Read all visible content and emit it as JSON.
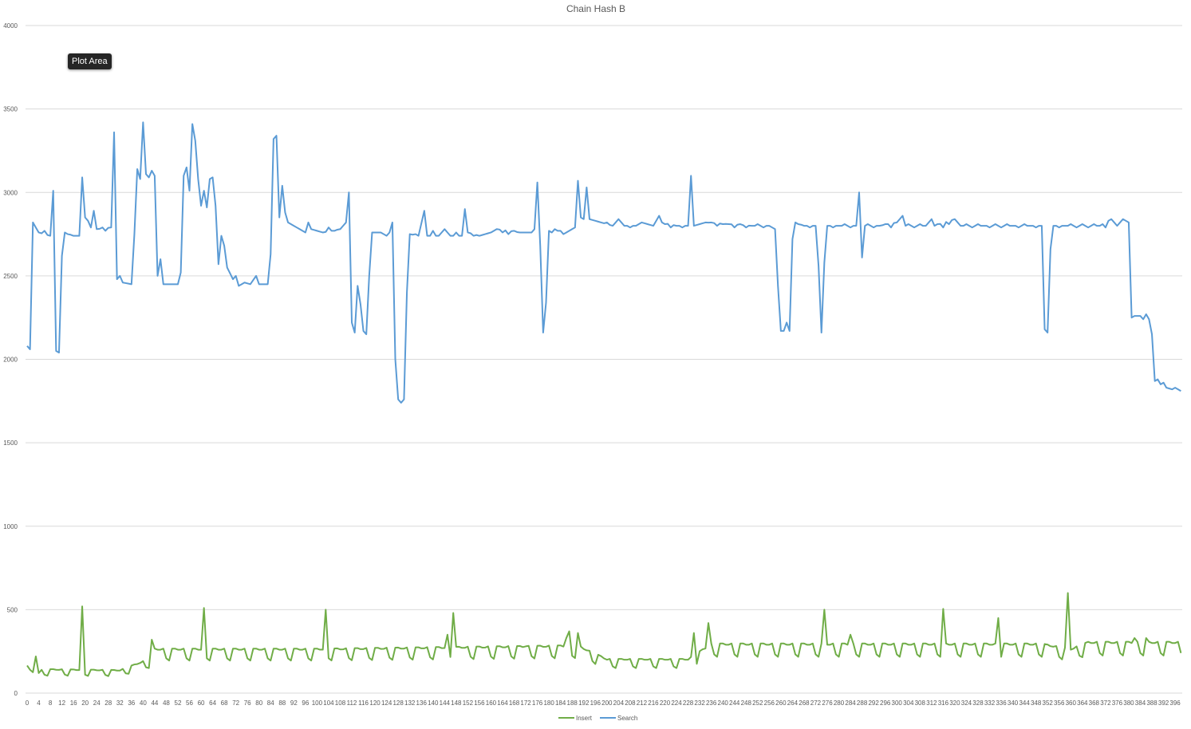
{
  "tooltip": {
    "text": "Plot Area"
  },
  "chart_data": {
    "type": "line",
    "title": "Chain Hash B",
    "xlabel": "",
    "ylabel": "",
    "ylim": [
      0,
      4000
    ],
    "yticks": [
      0,
      500,
      1000,
      1500,
      2000,
      2500,
      3000,
      3500,
      4000
    ],
    "x_start": 0,
    "x_end": 398,
    "x_tick_step": 4,
    "grid": "horizontal",
    "legend_position": "bottom",
    "series": [
      {
        "name": "Insert",
        "color": "#70ad47",
        "base_cycle": [
          150,
          205,
          205,
          200,
          200,
          205,
          160
        ],
        "keyframes": [
          [
            0,
            130
          ],
          [
            8,
            140
          ],
          [
            32,
            135
          ],
          [
            42,
            200
          ],
          [
            44,
            260
          ],
          [
            100,
            260
          ],
          [
            190,
            280
          ],
          [
            200,
            200
          ],
          [
            228,
            200
          ],
          [
            236,
            290
          ],
          [
            300,
            290
          ],
          [
            350,
            290
          ],
          [
            360,
            260
          ],
          [
            366,
            300
          ],
          [
            398,
            300
          ]
        ],
        "overrides": [
          [
            0,
            165
          ],
          [
            1,
            140
          ],
          [
            2,
            125
          ],
          [
            3,
            220
          ],
          [
            4,
            120
          ],
          [
            19,
            520
          ],
          [
            43,
            320
          ],
          [
            61,
            510
          ],
          [
            103,
            500
          ],
          [
            147,
            480
          ],
          [
            145,
            350
          ],
          [
            172,
            280
          ],
          [
            186,
            330
          ],
          [
            187,
            370
          ],
          [
            190,
            360
          ],
          [
            230,
            360
          ],
          [
            235,
            420
          ],
          [
            275,
            500
          ],
          [
            284,
            350
          ],
          [
            316,
            505
          ],
          [
            335,
            450
          ],
          [
            359,
            600
          ],
          [
            382,
            330
          ],
          [
            386,
            330
          ]
        ]
      },
      {
        "name": "Search",
        "color": "#5b9bd5",
        "keyframes": [
          [
            0,
            2080
          ],
          [
            1,
            2060
          ],
          [
            2,
            2820
          ],
          [
            4,
            2760
          ],
          [
            8,
            2740
          ],
          [
            9,
            3010
          ],
          [
            10,
            2050
          ],
          [
            11,
            2040
          ],
          [
            12,
            2620
          ],
          [
            13,
            2760
          ],
          [
            16,
            2740
          ],
          [
            18,
            2740
          ],
          [
            19,
            3090
          ],
          [
            20,
            2850
          ],
          [
            21,
            2830
          ],
          [
            22,
            2790
          ],
          [
            23,
            2890
          ],
          [
            24,
            2780
          ],
          [
            29,
            2790
          ],
          [
            30,
            3360
          ],
          [
            31,
            2480
          ],
          [
            32,
            2500
          ],
          [
            33,
            2460
          ],
          [
            36,
            2450
          ],
          [
            37,
            2750
          ],
          [
            38,
            3140
          ],
          [
            39,
            3080
          ],
          [
            40,
            3420
          ],
          [
            41,
            3110
          ],
          [
            42,
            3090
          ],
          [
            43,
            3130
          ],
          [
            44,
            3100
          ],
          [
            45,
            2500
          ],
          [
            46,
            2600
          ],
          [
            47,
            2450
          ],
          [
            50,
            2450
          ],
          [
            52,
            2450
          ],
          [
            53,
            2520
          ],
          [
            54,
            3100
          ],
          [
            55,
            3150
          ],
          [
            56,
            3010
          ],
          [
            57,
            3410
          ],
          [
            58,
            3310
          ],
          [
            59,
            3080
          ],
          [
            60,
            2920
          ],
          [
            61,
            3010
          ],
          [
            62,
            2910
          ],
          [
            63,
            3080
          ],
          [
            64,
            3090
          ],
          [
            65,
            2920
          ],
          [
            66,
            2570
          ],
          [
            67,
            2740
          ],
          [
            68,
            2680
          ],
          [
            69,
            2550
          ],
          [
            71,
            2480
          ],
          [
            72,
            2500
          ],
          [
            73,
            2440
          ],
          [
            75,
            2460
          ],
          [
            77,
            2450
          ],
          [
            79,
            2500
          ],
          [
            80,
            2450
          ],
          [
            83,
            2450
          ],
          [
            84,
            2630
          ],
          [
            85,
            3320
          ],
          [
            86,
            3340
          ],
          [
            87,
            2850
          ],
          [
            88,
            3040
          ],
          [
            89,
            2880
          ],
          [
            90,
            2820
          ],
          [
            92,
            2800
          ],
          [
            96,
            2760
          ],
          [
            97,
            2820
          ],
          [
            98,
            2780
          ],
          [
            102,
            2760
          ],
          [
            108,
            2780
          ],
          [
            110,
            2820
          ],
          [
            111,
            3000
          ],
          [
            112,
            2220
          ],
          [
            113,
            2160
          ],
          [
            114,
            2440
          ],
          [
            115,
            2330
          ],
          [
            116,
            2170
          ],
          [
            117,
            2150
          ],
          [
            118,
            2500
          ],
          [
            119,
            2760
          ],
          [
            122,
            2760
          ],
          [
            124,
            2740
          ],
          [
            125,
            2760
          ],
          [
            126,
            2820
          ],
          [
            127,
            2000
          ],
          [
            128,
            1760
          ],
          [
            129,
            1740
          ],
          [
            130,
            1760
          ],
          [
            131,
            2400
          ],
          [
            132,
            2750
          ],
          [
            135,
            2740
          ],
          [
            137,
            2890
          ],
          [
            138,
            2740
          ],
          [
            142,
            2740
          ],
          [
            144,
            2780
          ],
          [
            146,
            2740
          ],
          [
            150,
            2740
          ],
          [
            151,
            2900
          ],
          [
            152,
            2760
          ],
          [
            156,
            2740
          ],
          [
            160,
            2760
          ],
          [
            162,
            2780
          ],
          [
            170,
            2760
          ],
          [
            174,
            2760
          ],
          [
            175,
            2780
          ],
          [
            176,
            3060
          ],
          [
            177,
            2680
          ],
          [
            178,
            2160
          ],
          [
            179,
            2340
          ],
          [
            180,
            2770
          ],
          [
            181,
            2760
          ],
          [
            182,
            2780
          ],
          [
            185,
            2750
          ],
          [
            188,
            2780
          ],
          [
            189,
            2790
          ],
          [
            190,
            3070
          ],
          [
            191,
            2850
          ],
          [
            192,
            2840
          ],
          [
            193,
            3030
          ],
          [
            194,
            2840
          ],
          [
            198,
            2820
          ],
          [
            202,
            2800
          ],
          [
            204,
            2840
          ],
          [
            206,
            2800
          ],
          [
            210,
            2800
          ],
          [
            212,
            2820
          ],
          [
            216,
            2800
          ],
          [
            218,
            2860
          ],
          [
            219,
            2820
          ],
          [
            224,
            2800
          ],
          [
            228,
            2800
          ],
          [
            229,
            3100
          ],
          [
            230,
            2800
          ],
          [
            234,
            2820
          ],
          [
            242,
            2810
          ],
          [
            250,
            2800
          ],
          [
            256,
            2800
          ],
          [
            258,
            2780
          ],
          [
            259,
            2440
          ],
          [
            260,
            2170
          ],
          [
            261,
            2170
          ],
          [
            262,
            2220
          ],
          [
            263,
            2170
          ],
          [
            264,
            2720
          ],
          [
            265,
            2820
          ],
          [
            268,
            2800
          ],
          [
            272,
            2800
          ],
          [
            273,
            2560
          ],
          [
            274,
            2160
          ],
          [
            275,
            2580
          ],
          [
            276,
            2800
          ],
          [
            280,
            2800
          ],
          [
            286,
            2800
          ],
          [
            287,
            3000
          ],
          [
            288,
            2610
          ],
          [
            289,
            2800
          ],
          [
            294,
            2800
          ],
          [
            300,
            2820
          ],
          [
            302,
            2860
          ],
          [
            303,
            2800
          ],
          [
            310,
            2800
          ],
          [
            312,
            2840
          ],
          [
            313,
            2800
          ],
          [
            320,
            2840
          ],
          [
            322,
            2800
          ],
          [
            330,
            2800
          ],
          [
            340,
            2800
          ],
          [
            346,
            2800
          ],
          [
            350,
            2800
          ],
          [
            351,
            2180
          ],
          [
            352,
            2160
          ],
          [
            353,
            2660
          ],
          [
            354,
            2800
          ],
          [
            358,
            2800
          ],
          [
            370,
            2800
          ],
          [
            374,
            2840
          ],
          [
            376,
            2800
          ],
          [
            378,
            2840
          ],
          [
            380,
            2820
          ],
          [
            381,
            2250
          ],
          [
            382,
            2260
          ],
          [
            384,
            2260
          ],
          [
            385,
            2240
          ],
          [
            386,
            2270
          ],
          [
            387,
            2240
          ],
          [
            388,
            2150
          ],
          [
            389,
            1870
          ],
          [
            390,
            1880
          ],
          [
            391,
            1850
          ],
          [
            392,
            1860
          ],
          [
            393,
            1830
          ],
          [
            395,
            1820
          ],
          [
            396,
            1830
          ],
          [
            398,
            1810
          ]
        ],
        "overrides": [
          [
            6,
            2770
          ],
          [
            14,
            2750
          ],
          [
            26,
            2790
          ],
          [
            27,
            2770
          ],
          [
            94,
            2780
          ],
          [
            100,
            2770
          ],
          [
            104,
            2790
          ],
          [
            106,
            2770
          ],
          [
            134,
            2750
          ],
          [
            140,
            2770
          ],
          [
            148,
            2760
          ],
          [
            154,
            2740
          ],
          [
            158,
            2750
          ],
          [
            164,
            2760
          ],
          [
            166,
            2750
          ],
          [
            168,
            2770
          ],
          [
            184,
            2770
          ],
          [
            196,
            2830
          ],
          [
            200,
            2820
          ],
          [
            208,
            2790
          ],
          [
            214,
            2810
          ],
          [
            220,
            2810
          ],
          [
            222,
            2790
          ],
          [
            226,
            2790
          ],
          [
            232,
            2810
          ],
          [
            236,
            2820
          ],
          [
            238,
            2800
          ],
          [
            240,
            2810
          ],
          [
            244,
            2790
          ],
          [
            246,
            2810
          ],
          [
            248,
            2790
          ],
          [
            252,
            2810
          ],
          [
            254,
            2790
          ],
          [
            266,
            2810
          ],
          [
            270,
            2790
          ],
          [
            278,
            2790
          ],
          [
            282,
            2810
          ],
          [
            284,
            2790
          ],
          [
            290,
            2810
          ],
          [
            292,
            2790
          ],
          [
            296,
            2810
          ],
          [
            298,
            2790
          ],
          [
            304,
            2810
          ],
          [
            306,
            2790
          ],
          [
            308,
            2810
          ],
          [
            314,
            2810
          ],
          [
            316,
            2790
          ],
          [
            318,
            2810
          ],
          [
            324,
            2810
          ],
          [
            326,
            2790
          ],
          [
            328,
            2810
          ],
          [
            332,
            2790
          ],
          [
            334,
            2810
          ],
          [
            336,
            2790
          ],
          [
            338,
            2810
          ],
          [
            342,
            2790
          ],
          [
            344,
            2810
          ],
          [
            348,
            2790
          ],
          [
            356,
            2790
          ],
          [
            360,
            2810
          ],
          [
            362,
            2790
          ],
          [
            364,
            2810
          ],
          [
            366,
            2790
          ],
          [
            368,
            2810
          ],
          [
            372,
            2790
          ]
        ]
      }
    ]
  }
}
